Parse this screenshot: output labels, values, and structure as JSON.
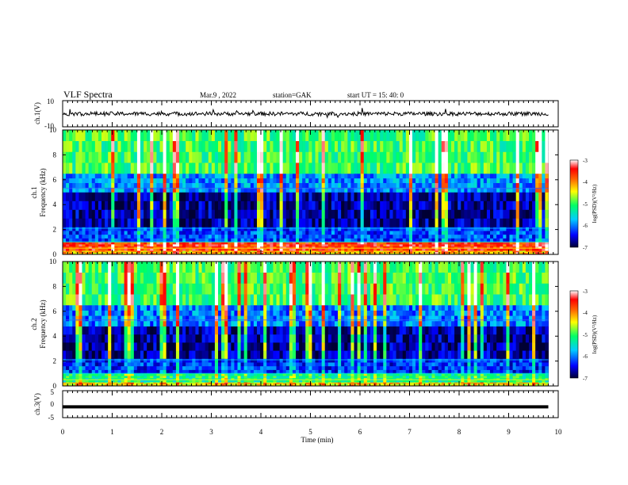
{
  "header": {
    "title": "VLF Spectra",
    "date": "Mar.9 , 2022",
    "station": "station=GAK",
    "start": "start UT = 15: 40: 0"
  },
  "chart_data": [
    {
      "type": "line",
      "id": "ch1-waveform",
      "ylabel": "ch.1(V)",
      "ylim": [
        -10,
        10
      ],
      "yticks": [
        "10",
        "-10"
      ],
      "x_unit": "min",
      "xlim": [
        0,
        10
      ],
      "data_extent_min": 9.8,
      "series": [
        {
          "description": "noisy waveform centred near 0 V",
          "baseline": 0,
          "amplitude": 1.5
        }
      ],
      "color": "#000000"
    },
    {
      "type": "heatmap",
      "id": "ch1-spectrogram",
      "ylabel": "ch.1\nFrequency (kHz)",
      "ylabel_lines": [
        "ch.1",
        "Frequency (kHz)"
      ],
      "ylim": [
        0,
        10
      ],
      "yticks": [
        "0",
        "2",
        "4",
        "6",
        "8",
        "10"
      ],
      "xlim": [
        0,
        10
      ],
      "data_extent_min": 9.8,
      "colorbar": {
        "label": "log(PSD)(V²/Hz)",
        "ticks": [
          "-3",
          "-4",
          "-5",
          "-6",
          "-7"
        ],
        "range": [
          -7,
          -3
        ],
        "colors": [
          "#000033",
          "#0000ff",
          "#00ccff",
          "#00ff66",
          "#ffff00",
          "#ff6600",
          "#ff0000",
          "#ffffff"
        ]
      },
      "profile": [
        {
          "f_khz": [
            0,
            0.3
          ],
          "level": -4.2
        },
        {
          "f_khz": [
            0.3,
            1.0
          ],
          "level": -3.6
        },
        {
          "f_khz": [
            1.0,
            2.2
          ],
          "level": -6.2
        },
        {
          "f_khz": [
            2.2,
            5.0
          ],
          "level": -6.7
        },
        {
          "f_khz": [
            5.0,
            6.5
          ],
          "level": -5.9
        },
        {
          "f_khz": [
            6.5,
            10.0
          ],
          "level": -5.0
        }
      ]
    },
    {
      "type": "heatmap",
      "id": "ch2-spectrogram",
      "ylabel": "ch.2\nFrequency (kHz)",
      "ylabel_lines": [
        "ch.2",
        "Frequency (kHz)"
      ],
      "ylim": [
        0,
        10
      ],
      "yticks": [
        "0",
        "2",
        "4",
        "6",
        "8",
        "10"
      ],
      "xlim": [
        0,
        10
      ],
      "data_extent_min": 9.8,
      "colorbar": {
        "label": "log(PSD)(V²/Hz)",
        "ticks": [
          "-3",
          "-4",
          "-5",
          "-6",
          "-7"
        ],
        "range": [
          -7,
          -3
        ],
        "colors": [
          "#000033",
          "#0000ff",
          "#00ccff",
          "#00ff66",
          "#ffff00",
          "#ff6600",
          "#ff0000",
          "#ffffff"
        ]
      },
      "profile": [
        {
          "f_khz": [
            0,
            0.3
          ],
          "level": -4.4
        },
        {
          "f_khz": [
            0.3,
            1.0
          ],
          "level": -5.2
        },
        {
          "f_khz": [
            1.0,
            2.2
          ],
          "level": -6.3
        },
        {
          "f_khz": [
            2.2,
            4.8
          ],
          "level": -6.7
        },
        {
          "f_khz": [
            4.8,
            6.5
          ],
          "level": -6.0
        },
        {
          "f_khz": [
            6.5,
            10.0
          ],
          "level": -5.0
        }
      ]
    },
    {
      "type": "line",
      "id": "ch3-waveform",
      "ylabel": "ch.3(V)",
      "ylim": [
        -5,
        5
      ],
      "yticks": [
        "5",
        "0",
        "-5"
      ],
      "xlim": [
        0,
        10
      ],
      "data_extent_min": 9.8,
      "series": [
        {
          "description": "flat trace",
          "value": -1.0
        }
      ],
      "color": "#000000"
    }
  ],
  "x_axis": {
    "label": "Time (min)",
    "ticks": [
      "0",
      "1",
      "2",
      "3",
      "4",
      "5",
      "6",
      "7",
      "8",
      "9",
      "10"
    ]
  }
}
